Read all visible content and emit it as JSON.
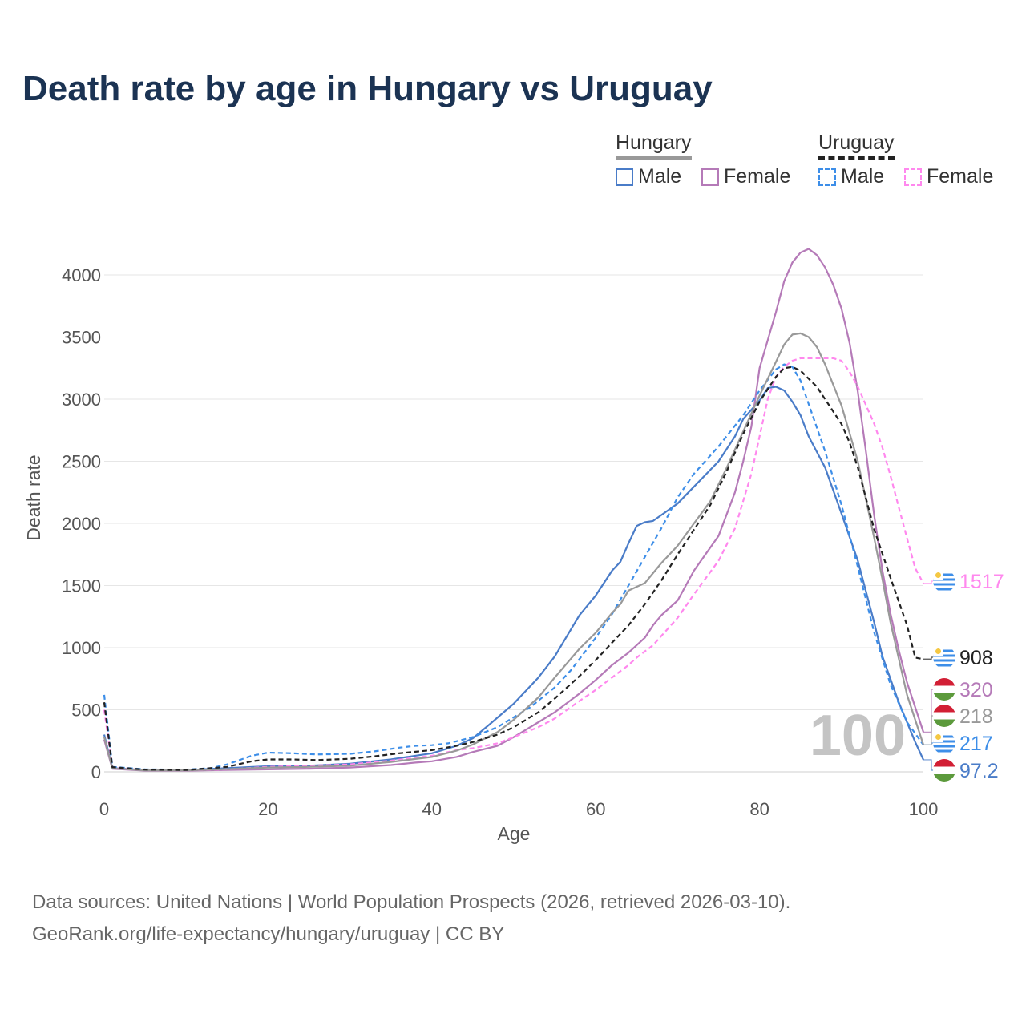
{
  "title": "Death rate by age in Hungary vs Uruguay",
  "legend": {
    "groups": [
      {
        "name": "Hungary",
        "line_color": "#999999",
        "dash": false,
        "items": [
          {
            "label": "Male",
            "color": "#4a7cc8",
            "dash": false
          },
          {
            "label": "Female",
            "color": "#b57ab8",
            "dash": false
          }
        ]
      },
      {
        "name": "Uruguay",
        "line_color": "#222222",
        "dash": true,
        "items": [
          {
            "label": "Male",
            "color": "#3d8ee8",
            "dash": true
          },
          {
            "label": "Female",
            "color": "#ff88ee",
            "dash": true
          }
        ]
      }
    ]
  },
  "watermark": "100",
  "source_lines": [
    "Data sources: United Nations | World Population Prospects (2026, retrieved 2026-03-10).",
    "GeoRank.org/life-expectancy/hungary/uruguay | CC BY"
  ],
  "chart_data": {
    "type": "line",
    "xlabel": "Age",
    "ylabel": "Death rate",
    "xlim": [
      0,
      100
    ],
    "ylim": [
      0,
      4200
    ],
    "xticks": [
      0,
      20,
      40,
      60,
      80,
      100
    ],
    "yticks": [
      0,
      500,
      1000,
      1500,
      2000,
      2500,
      3000,
      3500,
      4000
    ],
    "grid": true,
    "series": [
      {
        "name": "Hungary Male",
        "country": "Hungary",
        "sex": "Male",
        "color": "#4a7cc8",
        "dash": false,
        "end_label": "97.2",
        "points": [
          [
            0,
            300
          ],
          [
            1,
            30
          ],
          [
            5,
            15
          ],
          [
            10,
            15
          ],
          [
            15,
            30
          ],
          [
            20,
            45
          ],
          [
            25,
            50
          ],
          [
            30,
            65
          ],
          [
            35,
            100
          ],
          [
            40,
            150
          ],
          [
            43,
            210
          ],
          [
            45,
            270
          ],
          [
            47,
            380
          ],
          [
            50,
            550
          ],
          [
            53,
            760
          ],
          [
            55,
            930
          ],
          [
            57,
            1150
          ],
          [
            58,
            1260
          ],
          [
            60,
            1420
          ],
          [
            62,
            1620
          ],
          [
            63,
            1690
          ],
          [
            64,
            1840
          ],
          [
            65,
            1980
          ],
          [
            66,
            2010
          ],
          [
            67,
            2020
          ],
          [
            70,
            2160
          ],
          [
            75,
            2500
          ],
          [
            77,
            2700
          ],
          [
            78,
            2840
          ],
          [
            80,
            2990
          ],
          [
            81,
            3090
          ],
          [
            82,
            3100
          ],
          [
            83,
            3070
          ],
          [
            84,
            2980
          ],
          [
            85,
            2870
          ],
          [
            86,
            2700
          ],
          [
            88,
            2450
          ],
          [
            90,
            2080
          ],
          [
            92,
            1700
          ],
          [
            94,
            1200
          ],
          [
            95,
            930
          ],
          [
            97,
            560
          ],
          [
            99,
            240
          ],
          [
            100,
            97.2
          ]
        ]
      },
      {
        "name": "Hungary Female",
        "country": "Hungary",
        "sex": "Female",
        "color": "#b57ab8",
        "dash": false,
        "end_label": "320",
        "points": [
          [
            0,
            260
          ],
          [
            1,
            25
          ],
          [
            5,
            10
          ],
          [
            10,
            10
          ],
          [
            15,
            15
          ],
          [
            20,
            20
          ],
          [
            25,
            25
          ],
          [
            30,
            35
          ],
          [
            35,
            55
          ],
          [
            38,
            75
          ],
          [
            40,
            85
          ],
          [
            43,
            120
          ],
          [
            45,
            160
          ],
          [
            48,
            210
          ],
          [
            50,
            280
          ],
          [
            53,
            400
          ],
          [
            55,
            480
          ],
          [
            58,
            630
          ],
          [
            60,
            740
          ],
          [
            62,
            860
          ],
          [
            64,
            960
          ],
          [
            65,
            1020
          ],
          [
            66,
            1080
          ],
          [
            67,
            1180
          ],
          [
            68,
            1260
          ],
          [
            70,
            1380
          ],
          [
            72,
            1620
          ],
          [
            75,
            1900
          ],
          [
            77,
            2250
          ],
          [
            78,
            2500
          ],
          [
            79,
            2780
          ],
          [
            80,
            3250
          ],
          [
            82,
            3700
          ],
          [
            83,
            3950
          ],
          [
            84,
            4100
          ],
          [
            85,
            4180
          ],
          [
            86,
            4210
          ],
          [
            87,
            4160
          ],
          [
            88,
            4060
          ],
          [
            89,
            3920
          ],
          [
            90,
            3730
          ],
          [
            91,
            3450
          ],
          [
            92,
            3060
          ],
          [
            93,
            2570
          ],
          [
            94,
            2060
          ],
          [
            95,
            1620
          ],
          [
            96,
            1270
          ],
          [
            97,
            980
          ],
          [
            98,
            720
          ],
          [
            99,
            520
          ],
          [
            100,
            320
          ]
        ]
      },
      {
        "name": "Uruguay Male",
        "country": "Uruguay",
        "sex": "Male",
        "color": "#3d8ee8",
        "dash": true,
        "end_label": "217",
        "points": [
          [
            0,
            620
          ],
          [
            1,
            40
          ],
          [
            5,
            20
          ],
          [
            10,
            18
          ],
          [
            13,
            30
          ],
          [
            15,
            60
          ],
          [
            18,
            130
          ],
          [
            20,
            155
          ],
          [
            23,
            150
          ],
          [
            26,
            140
          ],
          [
            30,
            145
          ],
          [
            33,
            165
          ],
          [
            36,
            195
          ],
          [
            38,
            210
          ],
          [
            40,
            215
          ],
          [
            42,
            230
          ],
          [
            45,
            280
          ],
          [
            48,
            360
          ],
          [
            50,
            440
          ],
          [
            52,
            520
          ],
          [
            55,
            680
          ],
          [
            57,
            820
          ],
          [
            60,
            1080
          ],
          [
            62,
            1270
          ],
          [
            64,
            1500
          ],
          [
            66,
            1730
          ],
          [
            68,
            1960
          ],
          [
            70,
            2210
          ],
          [
            72,
            2400
          ],
          [
            75,
            2620
          ],
          [
            78,
            2870
          ],
          [
            80,
            3070
          ],
          [
            82,
            3240
          ],
          [
            83,
            3280
          ],
          [
            84,
            3260
          ],
          [
            85,
            3150
          ],
          [
            86,
            2960
          ],
          [
            88,
            2580
          ],
          [
            90,
            2150
          ],
          [
            92,
            1650
          ],
          [
            94,
            1120
          ],
          [
            96,
            700
          ],
          [
            98,
            400
          ],
          [
            100,
            217
          ]
        ]
      },
      {
        "name": "Uruguay Female",
        "country": "Uruguay",
        "sex": "Female",
        "color": "#ff88ee",
        "dash": true,
        "end_label": "1517",
        "points": [
          [
            0,
            500
          ],
          [
            1,
            35
          ],
          [
            5,
            15
          ],
          [
            10,
            12
          ],
          [
            15,
            20
          ],
          [
            20,
            40
          ],
          [
            25,
            50
          ],
          [
            30,
            60
          ],
          [
            35,
            90
          ],
          [
            40,
            130
          ],
          [
            43,
            175
          ],
          [
            45,
            190
          ],
          [
            48,
            230
          ],
          [
            50,
            280
          ],
          [
            53,
            360
          ],
          [
            55,
            430
          ],
          [
            58,
            570
          ],
          [
            60,
            660
          ],
          [
            62,
            760
          ],
          [
            64,
            860
          ],
          [
            65,
            920
          ],
          [
            67,
            1020
          ],
          [
            70,
            1240
          ],
          [
            72,
            1430
          ],
          [
            75,
            1700
          ],
          [
            77,
            1960
          ],
          [
            79,
            2400
          ],
          [
            80,
            2700
          ],
          [
            81,
            3000
          ],
          [
            82,
            3180
          ],
          [
            83,
            3260
          ],
          [
            84,
            3310
          ],
          [
            85,
            3330
          ],
          [
            87,
            3330
          ],
          [
            89,
            3330
          ],
          [
            90,
            3310
          ],
          [
            91,
            3220
          ],
          [
            92,
            3100
          ],
          [
            93,
            2950
          ],
          [
            94,
            2800
          ],
          [
            95,
            2610
          ],
          [
            96,
            2380
          ],
          [
            97,
            2130
          ],
          [
            98,
            1880
          ],
          [
            99,
            1640
          ],
          [
            100,
            1517
          ]
        ]
      },
      {
        "name": "Hungary",
        "country": "Hungary",
        "sex": "Both",
        "color": "#999999",
        "dash": false,
        "end_label": "218",
        "points": [
          [
            0,
            280
          ],
          [
            1,
            28
          ],
          [
            5,
            12
          ],
          [
            10,
            12
          ],
          [
            15,
            22
          ],
          [
            20,
            35
          ],
          [
            25,
            40
          ],
          [
            30,
            50
          ],
          [
            35,
            80
          ],
          [
            40,
            120
          ],
          [
            43,
            170
          ],
          [
            45,
            220
          ],
          [
            48,
            320
          ],
          [
            50,
            420
          ],
          [
            53,
            600
          ],
          [
            55,
            760
          ],
          [
            58,
            990
          ],
          [
            60,
            1120
          ],
          [
            62,
            1280
          ],
          [
            63,
            1350
          ],
          [
            64,
            1460
          ],
          [
            66,
            1520
          ],
          [
            67,
            1600
          ],
          [
            68,
            1680
          ],
          [
            70,
            1820
          ],
          [
            72,
            2000
          ],
          [
            74,
            2180
          ],
          [
            76,
            2450
          ],
          [
            78,
            2740
          ],
          [
            80,
            3030
          ],
          [
            82,
            3300
          ],
          [
            83,
            3440
          ],
          [
            84,
            3520
          ],
          [
            85,
            3530
          ],
          [
            86,
            3500
          ],
          [
            87,
            3420
          ],
          [
            88,
            3280
          ],
          [
            90,
            2950
          ],
          [
            92,
            2500
          ],
          [
            94,
            1880
          ],
          [
            95,
            1550
          ],
          [
            96,
            1200
          ],
          [
            98,
            620
          ],
          [
            100,
            218
          ]
        ]
      },
      {
        "name": "Uruguay",
        "country": "Uruguay",
        "sex": "Both",
        "color": "#222222",
        "dash": true,
        "end_label": "908",
        "points": [
          [
            0,
            560
          ],
          [
            1,
            38
          ],
          [
            5,
            18
          ],
          [
            10,
            15
          ],
          [
            15,
            40
          ],
          [
            18,
            85
          ],
          [
            20,
            100
          ],
          [
            23,
            100
          ],
          [
            26,
            95
          ],
          [
            30,
            105
          ],
          [
            33,
            125
          ],
          [
            36,
            150
          ],
          [
            40,
            175
          ],
          [
            43,
            210
          ],
          [
            45,
            240
          ],
          [
            48,
            300
          ],
          [
            50,
            360
          ],
          [
            53,
            480
          ],
          [
            55,
            590
          ],
          [
            58,
            770
          ],
          [
            60,
            900
          ],
          [
            62,
            1040
          ],
          [
            64,
            1180
          ],
          [
            66,
            1350
          ],
          [
            68,
            1540
          ],
          [
            70,
            1750
          ],
          [
            72,
            1950
          ],
          [
            74,
            2150
          ],
          [
            76,
            2420
          ],
          [
            78,
            2720
          ],
          [
            80,
            2980
          ],
          [
            82,
            3180
          ],
          [
            83,
            3250
          ],
          [
            84,
            3260
          ],
          [
            85,
            3230
          ],
          [
            87,
            3100
          ],
          [
            89,
            2900
          ],
          [
            90,
            2800
          ],
          [
            91,
            2650
          ],
          [
            92,
            2450
          ],
          [
            94,
            1950
          ],
          [
            96,
            1560
          ],
          [
            98,
            1180
          ],
          [
            99,
            920
          ],
          [
            100,
            908
          ]
        ]
      }
    ]
  }
}
